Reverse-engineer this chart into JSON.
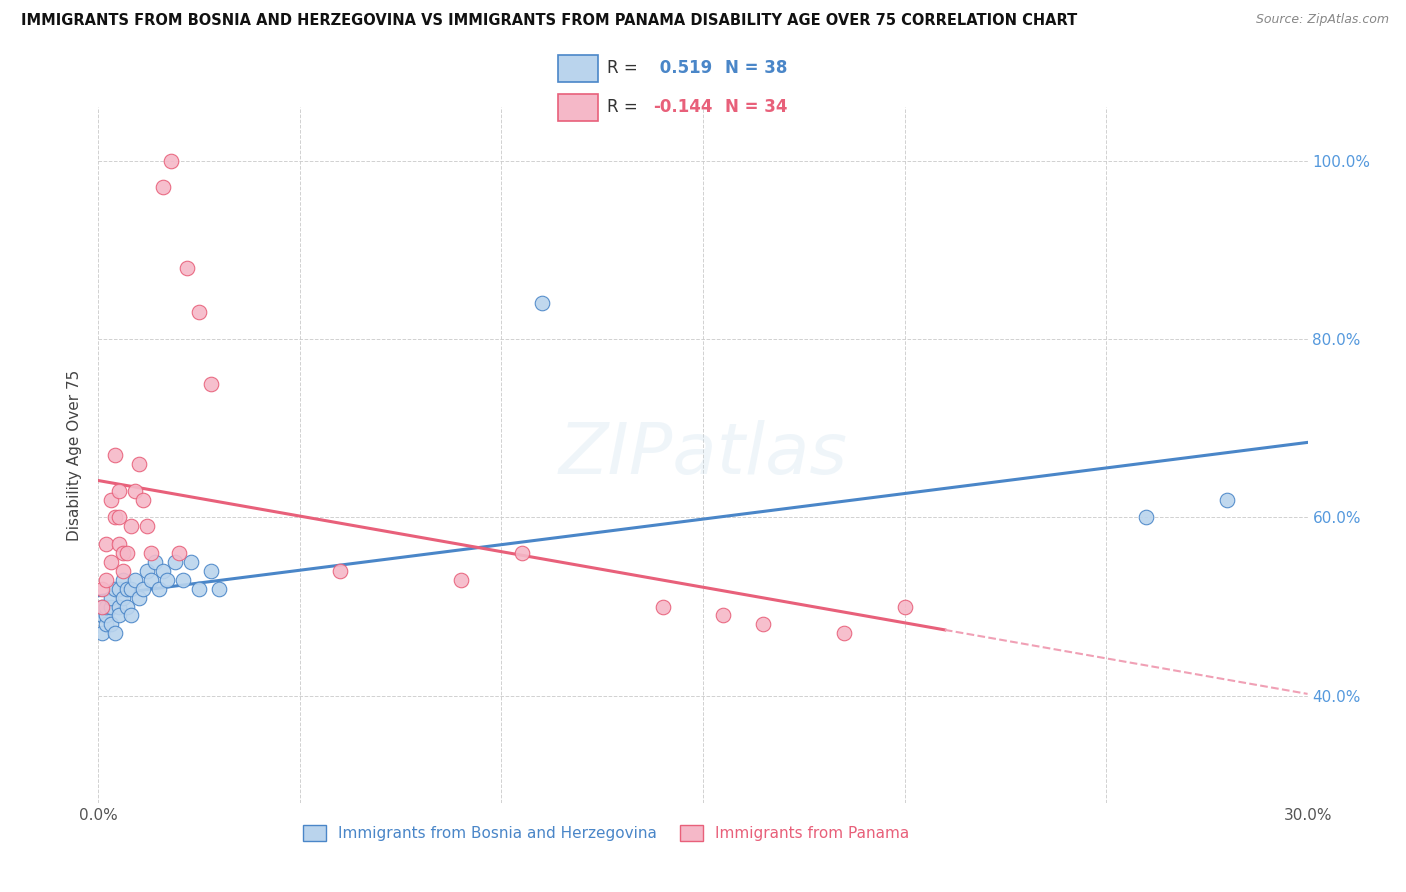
{
  "title": "IMMIGRANTS FROM BOSNIA AND HERZEGOVINA VS IMMIGRANTS FROM PANAMA DISABILITY AGE OVER 75 CORRELATION CHART",
  "source": "Source: ZipAtlas.com",
  "xlabel_bosnia": "Immigrants from Bosnia and Herzegovina",
  "xlabel_panama": "Immigrants from Panama",
  "ylabel": "Disability Age Over 75",
  "xlim": [
    0.0,
    0.3
  ],
  "ylim": [
    0.28,
    1.06
  ],
  "xticks": [
    0.0,
    0.05,
    0.1,
    0.15,
    0.2,
    0.25,
    0.3
  ],
  "xtick_labels": [
    "0.0%",
    "",
    "",
    "",
    "",
    "",
    "30.0%"
  ],
  "ytick_values": [
    0.4,
    0.6,
    0.8,
    1.0
  ],
  "ytick_labels_right": [
    "40.0%",
    "60.0%",
    "80.0%",
    "100.0%"
  ],
  "r_bosnia": 0.519,
  "n_bosnia": 38,
  "r_panama": -0.144,
  "n_panama": 34,
  "color_bosnia": "#bad4ed",
  "color_panama": "#f5b8c8",
  "color_bosnia_line": "#4a86c8",
  "color_panama_line": "#e8607a",
  "color_panama_dash": "#f0a0b5",
  "watermark": "ZIPatlas",
  "bosnia_x": [
    0.001,
    0.001,
    0.001,
    0.002,
    0.002,
    0.002,
    0.003,
    0.003,
    0.003,
    0.004,
    0.004,
    0.005,
    0.005,
    0.005,
    0.006,
    0.006,
    0.007,
    0.007,
    0.008,
    0.008,
    0.009,
    0.01,
    0.011,
    0.012,
    0.013,
    0.014,
    0.015,
    0.016,
    0.017,
    0.019,
    0.021,
    0.023,
    0.025,
    0.028,
    0.03,
    0.11,
    0.26,
    0.28
  ],
  "bosnia_y": [
    0.47,
    0.49,
    0.5,
    0.48,
    0.49,
    0.5,
    0.48,
    0.5,
    0.51,
    0.47,
    0.52,
    0.5,
    0.49,
    0.52,
    0.51,
    0.53,
    0.5,
    0.52,
    0.49,
    0.52,
    0.53,
    0.51,
    0.52,
    0.54,
    0.53,
    0.55,
    0.52,
    0.54,
    0.53,
    0.55,
    0.53,
    0.55,
    0.52,
    0.54,
    0.52,
    0.84,
    0.6,
    0.62
  ],
  "panama_x": [
    0.001,
    0.001,
    0.002,
    0.002,
    0.003,
    0.003,
    0.004,
    0.004,
    0.005,
    0.005,
    0.005,
    0.006,
    0.006,
    0.007,
    0.008,
    0.009,
    0.01,
    0.011,
    0.012,
    0.013,
    0.016,
    0.018,
    0.022,
    0.025,
    0.028,
    0.14,
    0.155,
    0.165,
    0.185,
    0.02,
    0.06,
    0.09,
    0.105,
    0.2
  ],
  "panama_y": [
    0.5,
    0.52,
    0.53,
    0.57,
    0.55,
    0.62,
    0.6,
    0.67,
    0.6,
    0.57,
    0.63,
    0.54,
    0.56,
    0.56,
    0.59,
    0.63,
    0.66,
    0.62,
    0.59,
    0.56,
    0.97,
    1.0,
    0.88,
    0.83,
    0.75,
    0.5,
    0.49,
    0.48,
    0.47,
    0.56,
    0.54,
    0.53,
    0.56,
    0.5
  ]
}
